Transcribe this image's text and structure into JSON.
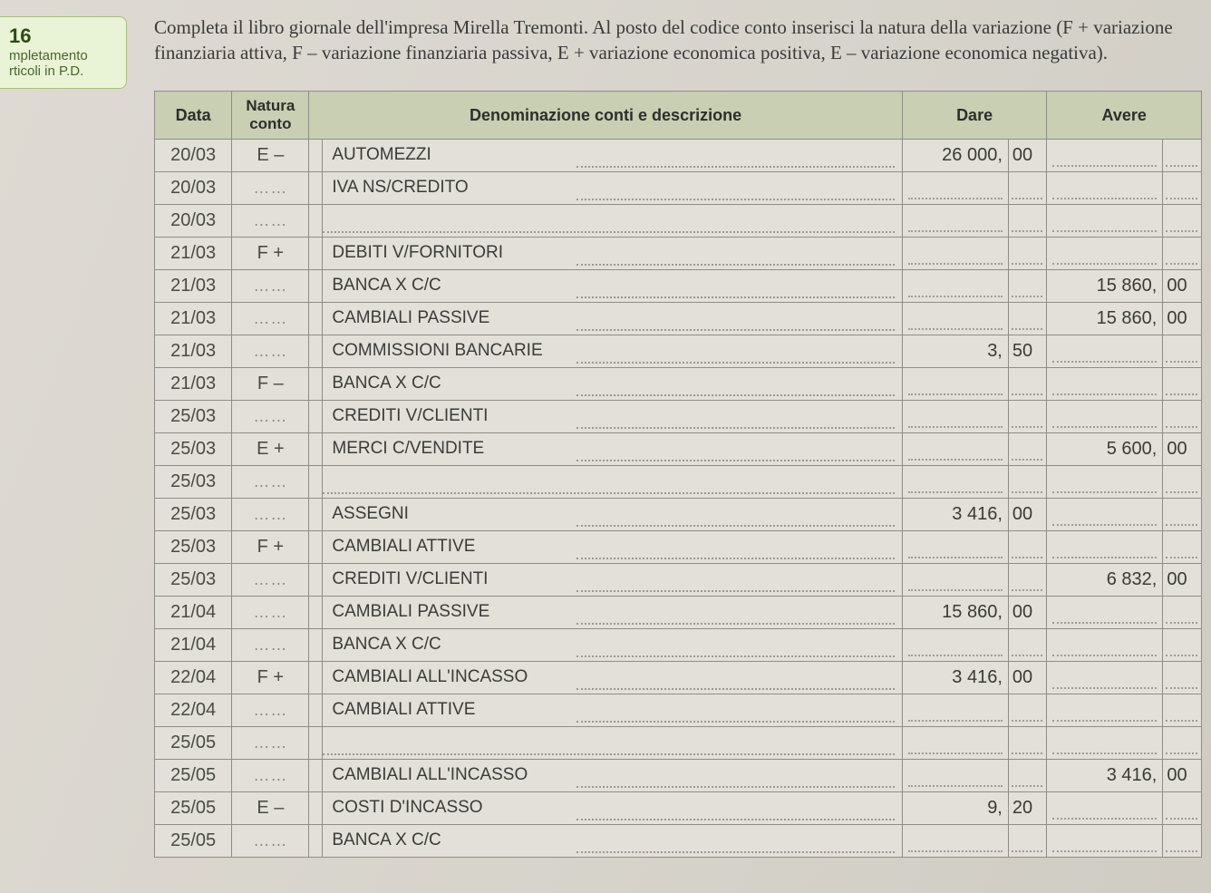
{
  "sidebar": {
    "number": "16",
    "line1": "mpletamento",
    "line2": "rticoli in P.D."
  },
  "instruction": "Completa il libro giornale dell'impresa Mirella Tremonti. Al posto del codice conto inserisci la natura della variazione (F + variazione finanziaria attiva, F – variazione finanziaria passiva, E + variazione economica positiva, E – variazione economica negativa).",
  "headers": {
    "data": "Data",
    "natura_top": "Natura",
    "natura_bot": "conto",
    "descr": "Denominazione conti e descrizione",
    "dare": "Dare",
    "avere": "Avere"
  },
  "rows": [
    {
      "date": "20/03",
      "nat": "E –",
      "desc": "AUTOMEZZI",
      "dare_i": "26 000,",
      "dare_c": "00",
      "avere_i": "",
      "avere_c": ""
    },
    {
      "date": "20/03",
      "nat": "……",
      "desc": "IVA NS/CREDITO",
      "dare_i": "",
      "dare_c": "",
      "avere_i": "",
      "avere_c": ""
    },
    {
      "date": "20/03",
      "nat": "……",
      "desc": "",
      "dare_i": "",
      "dare_c": "",
      "avere_i": "",
      "avere_c": ""
    },
    {
      "date": "21/03",
      "nat": "F +",
      "desc": "DEBITI V/FORNITORI",
      "dare_i": "",
      "dare_c": "",
      "avere_i": "",
      "avere_c": ""
    },
    {
      "date": "21/03",
      "nat": "……",
      "desc": "BANCA X C/C",
      "dare_i": "",
      "dare_c": "",
      "avere_i": "15 860,",
      "avere_c": "00"
    },
    {
      "date": "21/03",
      "nat": "……",
      "desc": "CAMBIALI PASSIVE",
      "dare_i": "",
      "dare_c": "",
      "avere_i": "15 860,",
      "avere_c": "00"
    },
    {
      "date": "21/03",
      "nat": "……",
      "desc": "COMMISSIONI BANCARIE",
      "dare_i": "3,",
      "dare_c": "50",
      "avere_i": "",
      "avere_c": ""
    },
    {
      "date": "21/03",
      "nat": "F –",
      "desc": "BANCA X C/C",
      "dare_i": "",
      "dare_c": "",
      "avere_i": "",
      "avere_c": ""
    },
    {
      "date": "25/03",
      "nat": "……",
      "desc": "CREDITI V/CLIENTI",
      "dare_i": "",
      "dare_c": "",
      "avere_i": "",
      "avere_c": ""
    },
    {
      "date": "25/03",
      "nat": "E +",
      "desc": "MERCI C/VENDITE",
      "dare_i": "",
      "dare_c": "",
      "avere_i": "5 600,",
      "avere_c": "00"
    },
    {
      "date": "25/03",
      "nat": "……",
      "desc": "",
      "dare_i": "",
      "dare_c": "",
      "avere_i": "",
      "avere_c": ""
    },
    {
      "date": "25/03",
      "nat": "……",
      "desc": "ASSEGNI",
      "dare_i": "3 416,",
      "dare_c": "00",
      "avere_i": "",
      "avere_c": ""
    },
    {
      "date": "25/03",
      "nat": "F +",
      "desc": "CAMBIALI ATTIVE",
      "dare_i": "",
      "dare_c": "",
      "avere_i": "",
      "avere_c": ""
    },
    {
      "date": "25/03",
      "nat": "……",
      "desc": "CREDITI V/CLIENTI",
      "dare_i": "",
      "dare_c": "",
      "avere_i": "6 832,",
      "avere_c": "00"
    },
    {
      "date": "21/04",
      "nat": "……",
      "desc": "CAMBIALI PASSIVE",
      "dare_i": "15 860,",
      "dare_c": "00",
      "avere_i": "",
      "avere_c": ""
    },
    {
      "date": "21/04",
      "nat": "……",
      "desc": "BANCA X C/C",
      "dare_i": "",
      "dare_c": "",
      "avere_i": "",
      "avere_c": ""
    },
    {
      "date": "22/04",
      "nat": "F +",
      "desc": "CAMBIALI ALL'INCASSO",
      "dare_i": "3 416,",
      "dare_c": "00",
      "avere_i": "",
      "avere_c": ""
    },
    {
      "date": "22/04",
      "nat": "……",
      "desc": "CAMBIALI ATTIVE",
      "dare_i": "",
      "dare_c": "",
      "avere_i": "",
      "avere_c": ""
    },
    {
      "date": "25/05",
      "nat": "……",
      "desc": "",
      "dare_i": "",
      "dare_c": "",
      "avere_i": "",
      "avere_c": ""
    },
    {
      "date": "25/05",
      "nat": "……",
      "desc": "CAMBIALI ALL'INCASSO",
      "dare_i": "",
      "dare_c": "",
      "avere_i": "3 416,",
      "avere_c": "00"
    },
    {
      "date": "25/05",
      "nat": "E –",
      "desc": "COSTI D'INCASSO",
      "dare_i": "9,",
      "dare_c": "20",
      "avere_i": "",
      "avere_c": ""
    },
    {
      "date": "25/05",
      "nat": "……",
      "desc": "BANCA X C/C",
      "dare_i": "",
      "dare_c": "",
      "avere_i": "",
      "avere_c": ""
    }
  ]
}
